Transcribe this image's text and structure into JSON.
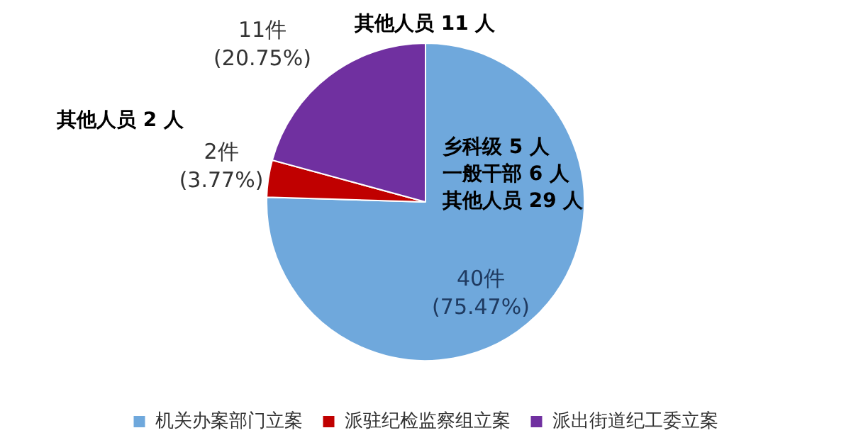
{
  "chart_data": {
    "type": "pie",
    "categories": [
      "机关办案部门立案",
      "派驻纪检监察组立案",
      "派出街道纪工委立案"
    ],
    "values": [
      40,
      2,
      11
    ],
    "colors": [
      "#6fa8dc",
      "#c00000",
      "#7030a0"
    ],
    "value_labels": [
      "40件\n(75.47%)",
      "2件\n(3.77%)",
      "11件\n(20.75%)"
    ],
    "annotations": [
      "乡科级 5 人",
      "一般干部 6 人",
      "其他人员 29 人",
      "其他人员 2 人",
      "其他人员 11 人"
    ],
    "legend": "bottom"
  }
}
